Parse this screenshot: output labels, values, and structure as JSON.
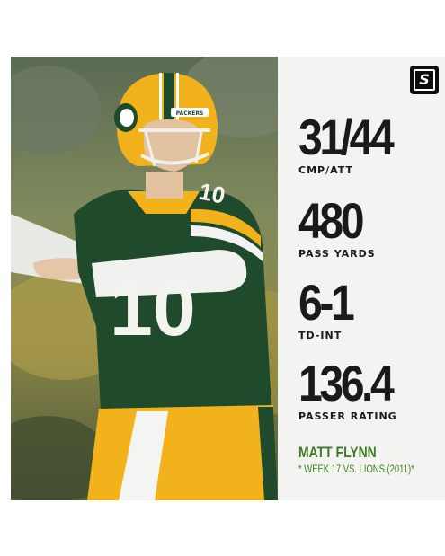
{
  "brand": {
    "logo_letter": "S"
  },
  "stats": [
    {
      "value": "31/44",
      "label": "CMP/ATT"
    },
    {
      "value": "480",
      "label": "PASS YARDS"
    },
    {
      "value": "6-1",
      "label": "TD-INT"
    },
    {
      "value": "136.4",
      "label": "PASSER RATING"
    }
  ],
  "player": {
    "name": "MATT FLYNN",
    "game": "* WEEK 17 VS. LIONS (2011)*",
    "jersey_number": "10",
    "helmet_text": "PACKERS"
  },
  "colors": {
    "jersey_green": "#1f4a2c",
    "packers_gold": "#f2b21c",
    "name_green": "#3e7d24",
    "panel_bg": "#f3f3f2",
    "stat_text": "#1a1a1a"
  }
}
